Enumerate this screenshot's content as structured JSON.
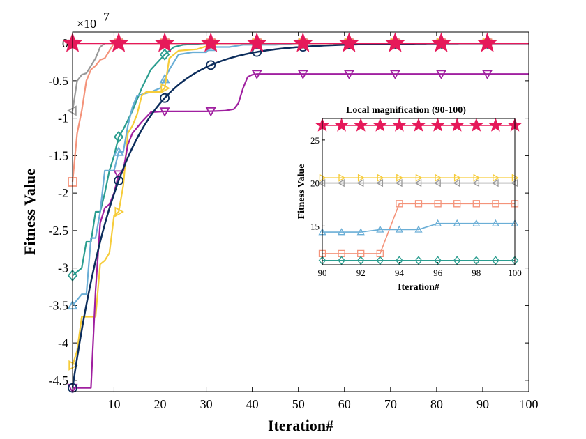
{
  "chart_data": [
    {
      "type": "line",
      "title": "",
      "xlabel": "Iteration#",
      "ylabel": "Fitness Value",
      "exponent": "×10",
      "exponent_power": "7",
      "xlim": [
        1,
        100
      ],
      "ylim": [
        -4.65,
        0.15
      ],
      "xticks": [
        10,
        20,
        30,
        40,
        50,
        60,
        70,
        80,
        90,
        100
      ],
      "yticks": [
        0,
        -0.5,
        -1,
        -1.5,
        -2,
        -2.5,
        -3,
        -3.5,
        -4,
        -4.5
      ],
      "ytick_labels": [
        "0",
        "-0.5",
        "-1",
        "-1.5",
        "-2",
        "-2.5",
        "-3",
        "-3.5",
        "-4",
        "-4.5"
      ],
      "series": [
        {
          "name": "series-gray",
          "color": "#999999",
          "marker": "triangle-left",
          "marker_every": 10,
          "points": [
            [
              1,
              -0.9
            ],
            [
              2,
              -0.5
            ],
            [
              3,
              -0.42
            ],
            [
              4,
              -0.4
            ],
            [
              5,
              -0.3
            ],
            [
              6,
              -0.2
            ],
            [
              7,
              -0.05
            ],
            [
              8,
              0
            ],
            [
              100,
              0
            ]
          ]
        },
        {
          "name": "series-salmon",
          "color": "#f4937a",
          "marker": "square",
          "marker_every": 10,
          "points": [
            [
              1,
              -1.85
            ],
            [
              2,
              -1.2
            ],
            [
              3,
              -0.9
            ],
            [
              4,
              -0.5
            ],
            [
              5,
              -0.35
            ],
            [
              6,
              -0.3
            ],
            [
              7,
              -0.22
            ],
            [
              8,
              -0.2
            ],
            [
              9,
              -0.1
            ],
            [
              10,
              0
            ],
            [
              100,
              0
            ]
          ]
        },
        {
          "name": "series-teal",
          "color": "#2a9d8f",
          "marker": "diamond",
          "marker_every": 10,
          "points": [
            [
              1,
              -3.1
            ],
            [
              3,
              -3.0
            ],
            [
              4,
              -2.65
            ],
            [
              5,
              -2.65
            ],
            [
              6,
              -2.25
            ],
            [
              7,
              -2.25
            ],
            [
              8,
              -2.0
            ],
            [
              9,
              -1.7
            ],
            [
              10,
              -1.5
            ],
            [
              11,
              -1.25
            ],
            [
              12,
              -1.15
            ],
            [
              14,
              -0.9
            ],
            [
              16,
              -0.6
            ],
            [
              18,
              -0.35
            ],
            [
              21,
              -0.15
            ],
            [
              23,
              -0.05
            ],
            [
              25,
              -0.02
            ],
            [
              30,
              0
            ],
            [
              100,
              0
            ]
          ]
        },
        {
          "name": "series-lightblue",
          "color": "#6aaed6",
          "marker": "triangle-up",
          "marker_every": 10,
          "points": [
            [
              1,
              -3.5
            ],
            [
              3,
              -3.35
            ],
            [
              4,
              -3.35
            ],
            [
              5,
              -2.6
            ],
            [
              6,
              -2.6
            ],
            [
              7,
              -2.25
            ],
            [
              8,
              -1.7
            ],
            [
              10,
              -1.7
            ],
            [
              11,
              -1.45
            ],
            [
              12,
              -1.45
            ],
            [
              13,
              -1.1
            ],
            [
              14,
              -0.85
            ],
            [
              15,
              -0.7
            ],
            [
              18,
              -0.65
            ],
            [
              20,
              -0.6
            ],
            [
              21,
              -0.48
            ],
            [
              22,
              -0.35
            ],
            [
              24,
              -0.15
            ],
            [
              27,
              -0.12
            ],
            [
              30,
              -0.12
            ],
            [
              31,
              -0.05
            ],
            [
              35,
              -0.05
            ],
            [
              38,
              -0.02
            ],
            [
              45,
              -0.02
            ],
            [
              50,
              0
            ],
            [
              100,
              0
            ]
          ]
        },
        {
          "name": "series-yellow",
          "color": "#f6cc3a",
          "marker": "triangle-right",
          "marker_every": 10,
          "points": [
            [
              1,
              -4.3
            ],
            [
              2,
              -4.1
            ],
            [
              3,
              -3.65
            ],
            [
              6,
              -3.65
            ],
            [
              7,
              -2.95
            ],
            [
              8,
              -2.9
            ],
            [
              9,
              -2.8
            ],
            [
              10,
              -2.3
            ],
            [
              11,
              -2.25
            ],
            [
              12,
              -1.9
            ],
            [
              13,
              -1.2
            ],
            [
              14,
              -1.1
            ],
            [
              15,
              -0.95
            ],
            [
              16,
              -0.7
            ],
            [
              17,
              -0.65
            ],
            [
              20,
              -0.65
            ],
            [
              21,
              -0.6
            ],
            [
              22,
              -0.2
            ],
            [
              24,
              -0.1
            ],
            [
              28,
              -0.08
            ],
            [
              31,
              -0.02
            ],
            [
              33,
              0
            ],
            [
              100,
              0
            ]
          ]
        },
        {
          "name": "series-purple",
          "color": "#a020a0",
          "marker": "triangle-down",
          "marker_every": 10,
          "points": [
            [
              1,
              -4.6
            ],
            [
              5,
              -4.6
            ],
            [
              6,
              -3.3
            ],
            [
              7,
              -2.4
            ],
            [
              8,
              -2.2
            ],
            [
              9,
              -2.15
            ],
            [
              10,
              -2.0
            ],
            [
              11,
              -1.75
            ],
            [
              12,
              -1.7
            ],
            [
              13,
              -1.35
            ],
            [
              14,
              -1.2
            ],
            [
              16,
              -1.05
            ],
            [
              18,
              -0.92
            ],
            [
              21,
              -0.91
            ],
            [
              30,
              -0.91
            ],
            [
              34,
              -0.9
            ],
            [
              36,
              -0.88
            ],
            [
              37,
              -0.8
            ],
            [
              38,
              -0.6
            ],
            [
              39,
              -0.45
            ],
            [
              40,
              -0.42
            ],
            [
              41,
              -0.41
            ],
            [
              100,
              -0.41
            ]
          ]
        },
        {
          "name": "series-navy",
          "color": "#0c2d5c",
          "marker": "circle",
          "marker_every": 10,
          "curve": "exp",
          "start": -4.6,
          "end": 0,
          "rate": 0.092
        },
        {
          "name": "series-red",
          "color": "#e6195a",
          "marker": "pentagram",
          "marker_every": 10,
          "points": [
            [
              1,
              0
            ],
            [
              100,
              0
            ]
          ]
        }
      ]
    },
    {
      "type": "line",
      "title": "Local magnification (90-100)",
      "xlabel": "Iteration#",
      "ylabel": "Fitness Value",
      "xlim": [
        90,
        100
      ],
      "ylim": [
        10.5,
        27.5
      ],
      "xticks": [
        90,
        92,
        94,
        96,
        98,
        100
      ],
      "yticks": [
        15,
        20,
        25
      ],
      "series": [
        {
          "name": "inset-red",
          "color": "#e6195a",
          "marker": "pentagram",
          "values": [
            26.7,
            26.7,
            26.7,
            26.7,
            26.7,
            26.7,
            26.7,
            26.7,
            26.7,
            26.7,
            26.7
          ]
        },
        {
          "name": "inset-yellow",
          "color": "#f6cc3a",
          "marker": "triangle-right",
          "values": [
            20.6,
            20.6,
            20.6,
            20.6,
            20.6,
            20.6,
            20.6,
            20.6,
            20.6,
            20.6,
            20.6
          ]
        },
        {
          "name": "inset-gray",
          "color": "#999999",
          "marker": "triangle-left",
          "values": [
            20.0,
            20.0,
            20.0,
            20.0,
            20.0,
            20.0,
            20.0,
            20.0,
            20.0,
            20.0,
            20.0
          ]
        },
        {
          "name": "inset-salmon",
          "color": "#f4937a",
          "marker": "square",
          "values": [
            11.8,
            11.8,
            11.8,
            11.8,
            17.6,
            17.6,
            17.6,
            17.6,
            17.6,
            17.6,
            17.6
          ]
        },
        {
          "name": "inset-lightblue",
          "color": "#6aaed6",
          "marker": "triangle-up",
          "values": [
            14.3,
            14.3,
            14.3,
            14.6,
            14.6,
            14.6,
            15.3,
            15.3,
            15.3,
            15.3,
            15.3
          ]
        },
        {
          "name": "inset-teal",
          "color": "#2a9d8f",
          "marker": "diamond",
          "values": [
            11.0,
            11.0,
            11.0,
            11.0,
            11.0,
            11.0,
            11.0,
            11.0,
            11.0,
            11.0,
            11.0
          ]
        }
      ]
    }
  ]
}
